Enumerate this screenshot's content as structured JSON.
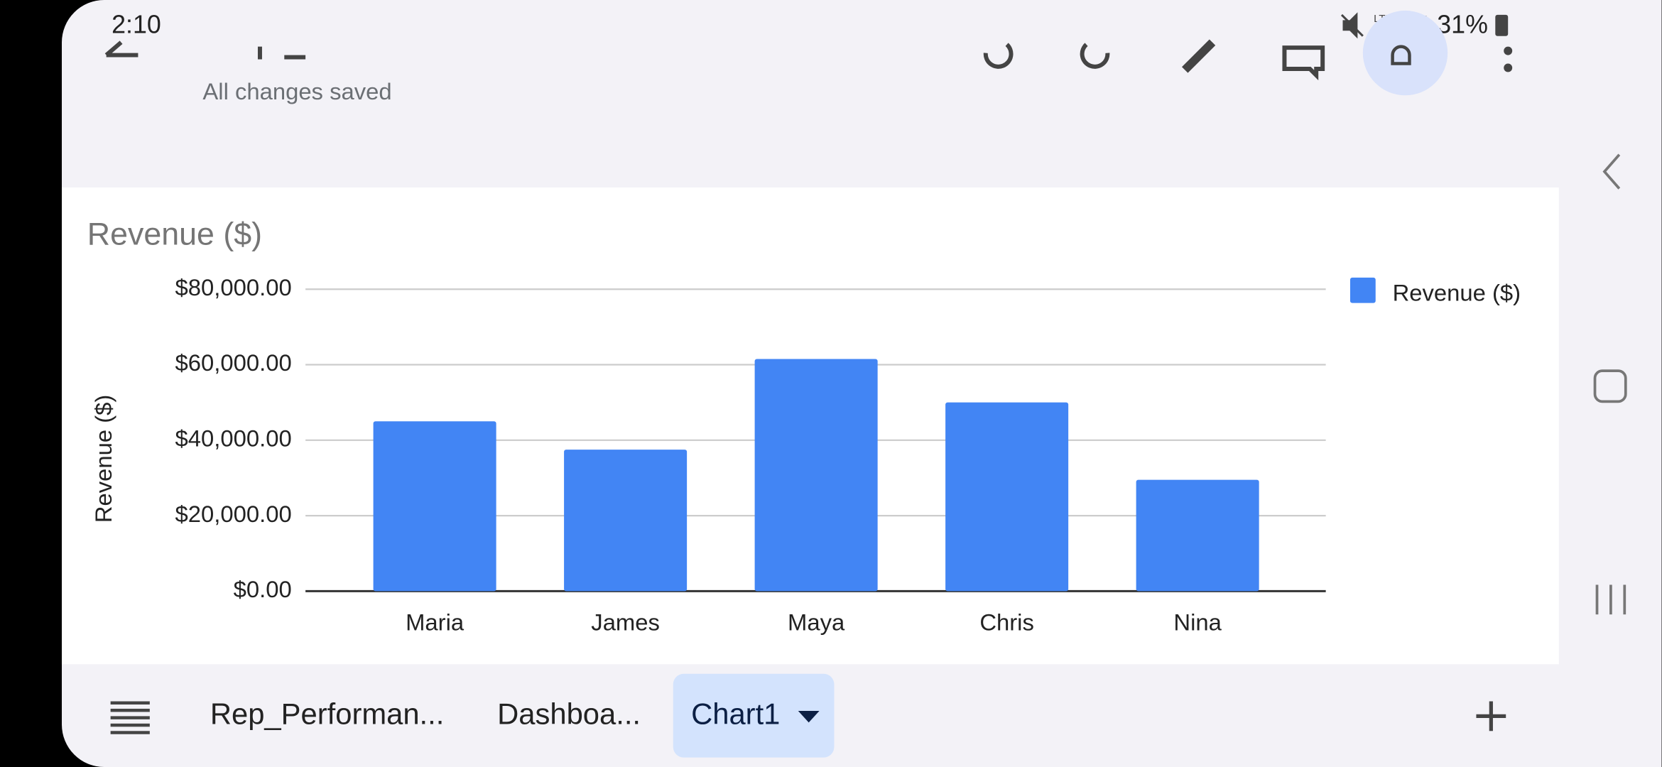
{
  "status_bar": {
    "time": "2:10",
    "network": "LTE+",
    "battery": "31%"
  },
  "header": {
    "save_status": "All changes saved"
  },
  "chart_data": {
    "type": "bar",
    "title": "Revenue ($)",
    "y_label": "Revenue ($)",
    "categories": [
      "Maria",
      "James",
      "Maya",
      "Chris",
      "Nina"
    ],
    "series": [
      {
        "name": "Revenue ($)",
        "color": "#4285f4",
        "values": [
          45000,
          37500,
          61500,
          50000,
          29500
        ]
      }
    ],
    "ylim": [
      0,
      80000
    ],
    "yticks": [
      {
        "value": 0,
        "label": "$0.00"
      },
      {
        "value": 20000,
        "label": "$20,000.00"
      },
      {
        "value": 40000,
        "label": "$40,000.00"
      },
      {
        "value": 60000,
        "label": "$60,000.00"
      },
      {
        "value": 80000,
        "label": "$80,000.00"
      }
    ],
    "grid": true,
    "legend": "right"
  },
  "sheet_tabs": {
    "tabs": [
      "Rep_Performan...",
      "Dashboa...",
      "Chart1"
    ]
  }
}
